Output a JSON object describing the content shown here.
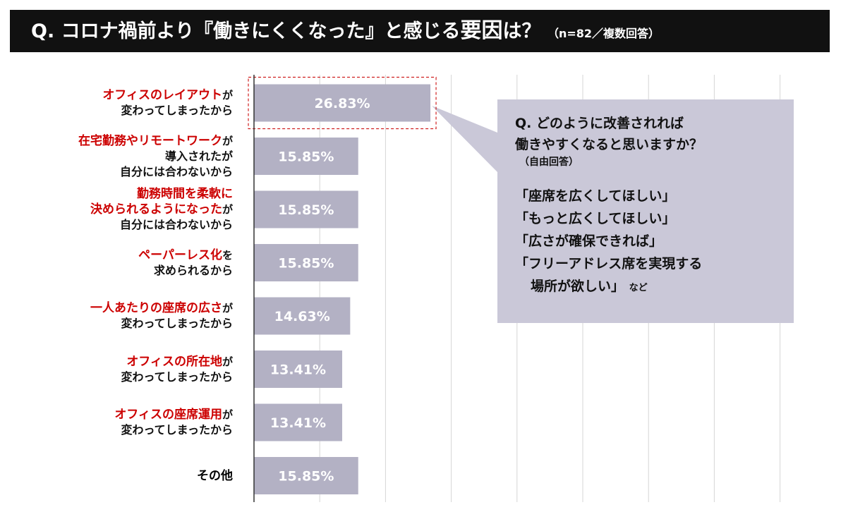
{
  "header": {
    "question": "Q. コロナ禍前より『働きにくくなった』と感じる",
    "question_emph": "要因",
    "question_tail": "は？",
    "note": "（n=82／複数回答）"
  },
  "callout": {
    "question_line1": "Q. どのように改善されれば",
    "question_line2": "働きやすくなると思いますか？",
    "question_sub": "（自由回答）",
    "answers": [
      "「座席を広くしてほしい」",
      "「もっと広くしてほしい」",
      "「広さが確保できれば」",
      "「フリーアドレス席を実現する"
    ],
    "answer_last": "場所が欲しい」",
    "answer_suffix": "など"
  },
  "chart_data": {
    "type": "bar",
    "orientation": "horizontal",
    "categories": [
      {
        "l1_red": "オフィスのレイアウト",
        "l1_black": "が",
        "l2": [
          "変わってしまったから"
        ]
      },
      {
        "l1_red": "在宅勤務やリモートワーク",
        "l1_black": "が",
        "l2": [
          "導入されたが",
          "自分には合わないから"
        ]
      },
      {
        "l1_red": "勤務時間を柔軟に",
        "l1_black": "",
        "l1b_red": "決められるようになった",
        "l1b_black": "が",
        "l2": [
          "自分には合わないから"
        ]
      },
      {
        "l1_red": "ペーパーレス化",
        "l1_black": "を",
        "l2": [
          "求められるから"
        ]
      },
      {
        "l1_red": "一人あたりの座席の広さ",
        "l1_black": "が",
        "l2": [
          "変わってしまったから"
        ]
      },
      {
        "l1_red": "オフィスの所在地",
        "l1_black": "が",
        "l2": [
          "変わってしまったから"
        ]
      },
      {
        "l1_red": "オフィスの座席運用",
        "l1_black": "が",
        "l2": [
          "変わってしまったから"
        ]
      },
      {
        "l1_red": "",
        "l1_black": "その他",
        "l2": []
      }
    ],
    "values": [
      26.83,
      15.85,
      15.85,
      15.85,
      14.63,
      13.41,
      13.41,
      15.85
    ],
    "value_labels": [
      "26.83%",
      "15.85%",
      "15.85%",
      "15.85%",
      "14.63%",
      "13.41%",
      "13.41%",
      "15.85%"
    ],
    "highlight_index": 0,
    "xlim": [
      0,
      80
    ],
    "gridlines": [
      10,
      20,
      30,
      40,
      50,
      60,
      70,
      80
    ],
    "colors": {
      "bar": "#b3b1c4",
      "highlight_border": "#d02020",
      "callout": "#cac8d8",
      "grid": "#d6d6d6",
      "label_red": "#cc0000"
    }
  }
}
